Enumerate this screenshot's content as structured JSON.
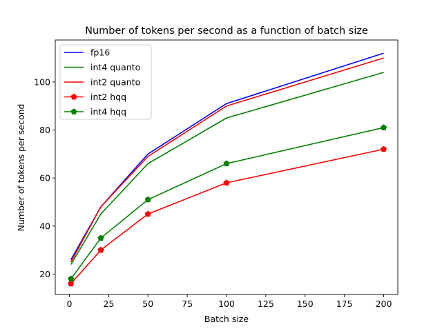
{
  "chart_data": {
    "type": "line",
    "title": "Number of tokens per second as a function of batch size",
    "xlabel": "Batch size",
    "ylabel": "Number of tokens per second",
    "x": [
      1,
      20,
      50,
      100,
      200
    ],
    "xlim": [
      -9,
      209
    ],
    "ylim": [
      11.5,
      117.5
    ],
    "xticks": [
      0,
      25,
      50,
      75,
      100,
      125,
      150,
      175,
      200
    ],
    "yticks": [
      20,
      40,
      60,
      80,
      100
    ],
    "grid": false,
    "legend_position": "top-left",
    "series": [
      {
        "name": "fp16",
        "color": "#0000ff",
        "marker": "none",
        "values": [
          26,
          48,
          70,
          91,
          112
        ]
      },
      {
        "name": "int4 quanto",
        "color": "#008000",
        "marker": "none",
        "values": [
          24,
          45,
          66,
          85,
          104
        ]
      },
      {
        "name": "int2 quanto",
        "color": "#ff0000",
        "marker": "none",
        "values": [
          25,
          48,
          69,
          90,
          110
        ]
      },
      {
        "name": "int2 hqq",
        "color": "#ff0000",
        "marker": "pentagon",
        "values": [
          16,
          30,
          45,
          58,
          72
        ]
      },
      {
        "name": "int4 hqq",
        "color": "#008000",
        "marker": "pentagon",
        "values": [
          18,
          35,
          51,
          66,
          81
        ]
      }
    ]
  }
}
